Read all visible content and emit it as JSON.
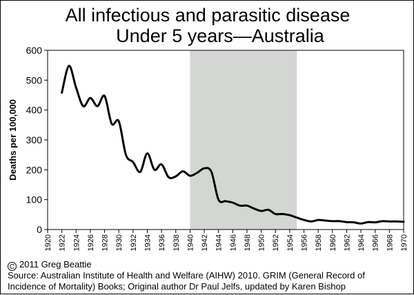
{
  "chart_data": {
    "type": "line",
    "title": "All infectious and parasitic disease",
    "subtitle": "Under 5 years—Australia",
    "xlabel": "",
    "ylabel": "Deaths per 100,000",
    "xlim": [
      1920,
      1970
    ],
    "ylim": [
      0,
      600
    ],
    "x_ticks": [
      "1920",
      "1922",
      "1924",
      "1926",
      "1928",
      "1930",
      "1932",
      "1934",
      "1936",
      "1938",
      "1940",
      "1942",
      "1944",
      "1946",
      "1948",
      "1950",
      "1952",
      "1954",
      "1956",
      "1958",
      "1960",
      "1962",
      "1964",
      "1966",
      "1968",
      "1970"
    ],
    "y_ticks": [
      "0",
      "100",
      "200",
      "300",
      "400",
      "500",
      "600"
    ],
    "grid": false,
    "shaded_region": {
      "from": 1940,
      "to": 1955,
      "color": "#d4d6d3"
    },
    "series": [
      {
        "name": "Deaths per 100,000",
        "color": "#000000",
        "points": [
          [
            1922,
            458
          ],
          [
            1923,
            548
          ],
          [
            1924,
            475
          ],
          [
            1925,
            413
          ],
          [
            1926,
            440
          ],
          [
            1927,
            413
          ],
          [
            1928,
            447
          ],
          [
            1929,
            354
          ],
          [
            1930,
            362
          ],
          [
            1931,
            250
          ],
          [
            1932,
            226
          ],
          [
            1933,
            193
          ],
          [
            1934,
            255
          ],
          [
            1935,
            200
          ],
          [
            1936,
            218
          ],
          [
            1937,
            175
          ],
          [
            1938,
            178
          ],
          [
            1939,
            195
          ],
          [
            1940,
            180
          ],
          [
            1941,
            190
          ],
          [
            1942,
            205
          ],
          [
            1943,
            193
          ],
          [
            1944,
            100
          ],
          [
            1945,
            95
          ],
          [
            1946,
            90
          ],
          [
            1947,
            80
          ],
          [
            1948,
            80
          ],
          [
            1949,
            70
          ],
          [
            1950,
            62
          ],
          [
            1951,
            66
          ],
          [
            1952,
            52
          ],
          [
            1953,
            52
          ],
          [
            1954,
            48
          ],
          [
            1955,
            40
          ],
          [
            1956,
            32
          ],
          [
            1957,
            27
          ],
          [
            1958,
            32
          ],
          [
            1959,
            30
          ],
          [
            1960,
            28
          ],
          [
            1961,
            28
          ],
          [
            1962,
            25
          ],
          [
            1963,
            24
          ],
          [
            1964,
            20
          ],
          [
            1965,
            25
          ],
          [
            1966,
            24
          ],
          [
            1967,
            28
          ],
          [
            1968,
            27
          ],
          [
            1969,
            27
          ],
          [
            1970,
            26
          ]
        ]
      }
    ]
  },
  "footer": {
    "copyright_symbol": "C",
    "copyright": "2011 Greg Beattie",
    "source_line1": "Source: Australian Institute of Health and Welfare (AIHW) 2010. GRIM (General Record of",
    "source_line2": "Incidence of Mortality) Books; Original author Dr Paul Jelfs, updated by Karen Bishop"
  }
}
